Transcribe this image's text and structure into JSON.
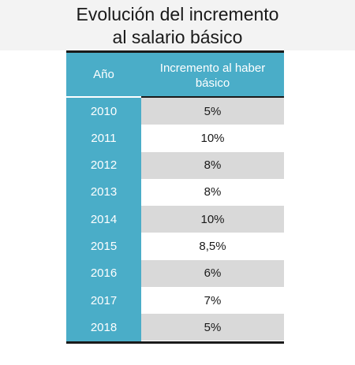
{
  "title": {
    "line1": "Evolución del incremento",
    "line2": "al salario básico"
  },
  "chart_data": {
    "type": "table",
    "title": "Evolución del incremento al salario básico",
    "columns": [
      "Año",
      "Incremento al haber básico"
    ],
    "header_line1": "Incremento al haber",
    "header_line2": "básico",
    "rows": [
      {
        "year": "2010",
        "value": "5%"
      },
      {
        "year": "2011",
        "value": "10%"
      },
      {
        "year": "2012",
        "value": "8%"
      },
      {
        "year": "2013",
        "value": "8%"
      },
      {
        "year": "2014",
        "value": "10%"
      },
      {
        "year": "2015",
        "value": "8,5%"
      },
      {
        "year": "2016",
        "value": "6%"
      },
      {
        "year": "2017",
        "value": "7%"
      },
      {
        "year": "2018",
        "value": "5%"
      }
    ]
  },
  "colors": {
    "header_bg": "#4aadc8",
    "shaded_row": "#d9d9d9",
    "rule": "#1a1a1a"
  }
}
